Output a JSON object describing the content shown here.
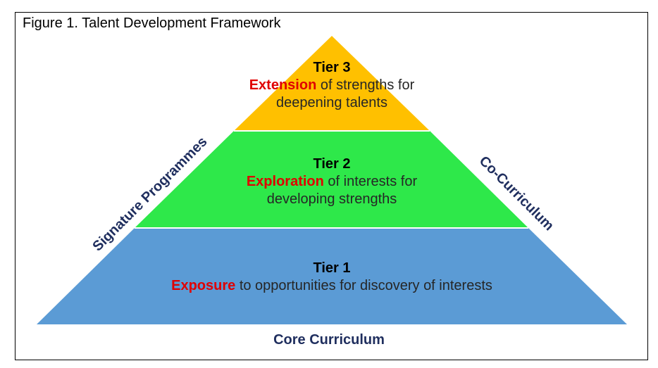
{
  "figure_title": "Figure 1. Talent Development Framework",
  "colors": {
    "tier3_fill": "#FFC000",
    "tier2_fill": "#2EE84A",
    "tier1_fill": "#5B9BD5",
    "keyword": "#E00000",
    "label_navy": "#1F2E5E"
  },
  "tiers": [
    {
      "heading": "Tier 3",
      "keyword": "Extension",
      "rest_line1": " of strengths for",
      "line2": "deepening talents"
    },
    {
      "heading": "Tier 2",
      "keyword": "Exploration",
      "rest_line1": " of interests for",
      "line2": "developing strengths"
    },
    {
      "heading": "Tier 1",
      "keyword": "Exposure",
      "rest_line1": " to opportunities for discovery of interests",
      "line2": ""
    }
  ],
  "left_label": "Signature Programmes",
  "right_label": "Co-Curriculum",
  "base_label": "Core Curriculum"
}
